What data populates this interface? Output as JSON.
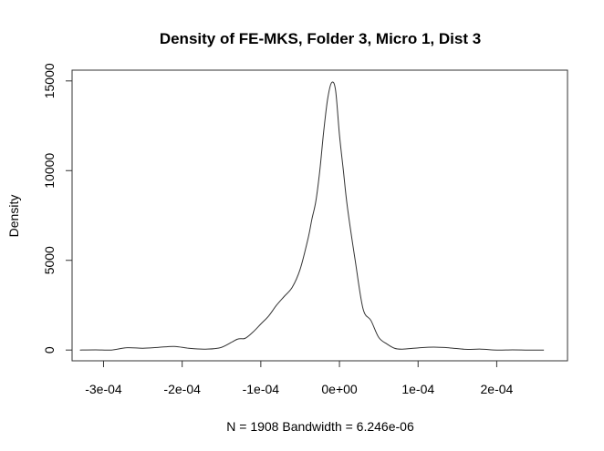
{
  "chart_data": {
    "type": "line",
    "title": "Density of FE-MKS, Folder 3, Micro 1, Dist 3",
    "xlabel": "N = 1908   Bandwidth = 6.246e-06",
    "ylabel": "Density",
    "xlim": [
      -0.00034,
      0.00029
    ],
    "ylim": [
      -600,
      15600
    ],
    "x_ticks": [
      -0.0003,
      -0.0002,
      -0.0001,
      0.0,
      0.0001,
      0.0002
    ],
    "x_tick_labels": [
      "-3e-04",
      "-2e-04",
      "-1e-04",
      "0e+00",
      "1e-04",
      "2e-04"
    ],
    "y_ticks": [
      0,
      5000,
      10000,
      15000
    ],
    "y_tick_labels": [
      "0",
      "5000",
      "10000",
      "15000"
    ],
    "grid": false,
    "legend": "none",
    "series": [
      {
        "color": "#333333",
        "x": [
          -0.00033,
          -0.00031,
          -0.00029,
          -0.00027,
          -0.00025,
          -0.00023,
          -0.00021,
          -0.00019,
          -0.00017,
          -0.00015,
          -0.00013,
          -0.00012,
          -0.00011,
          -0.0001,
          -9e-05,
          -8e-05,
          -7e-05,
          -6e-05,
          -5e-05,
          -4e-05,
          -3.5e-05,
          -3e-05,
          -2.5e-05,
          -2e-05,
          -1.5e-05,
          -1e-05,
          -5e-06,
          0.0,
          5e-06,
          1e-05,
          2e-05,
          3e-05,
          4e-05,
          5e-05,
          6e-05,
          7e-05,
          8e-05,
          0.0001,
          0.00012,
          0.00014,
          0.00016,
          0.00018,
          0.0002,
          0.00022,
          0.00024,
          0.00026
        ],
        "y": [
          0,
          10,
          0,
          130,
          100,
          150,
          200,
          90,
          50,
          150,
          600,
          650,
          1000,
          1450,
          1900,
          2500,
          3000,
          3500,
          4500,
          6200,
          7300,
          8300,
          10000,
          12200,
          14000,
          14900,
          14500,
          12000,
          10000,
          8000,
          5000,
          2300,
          1650,
          700,
          350,
          100,
          50,
          120,
          160,
          120,
          40,
          50,
          0,
          10,
          0,
          0
        ]
      }
    ]
  }
}
